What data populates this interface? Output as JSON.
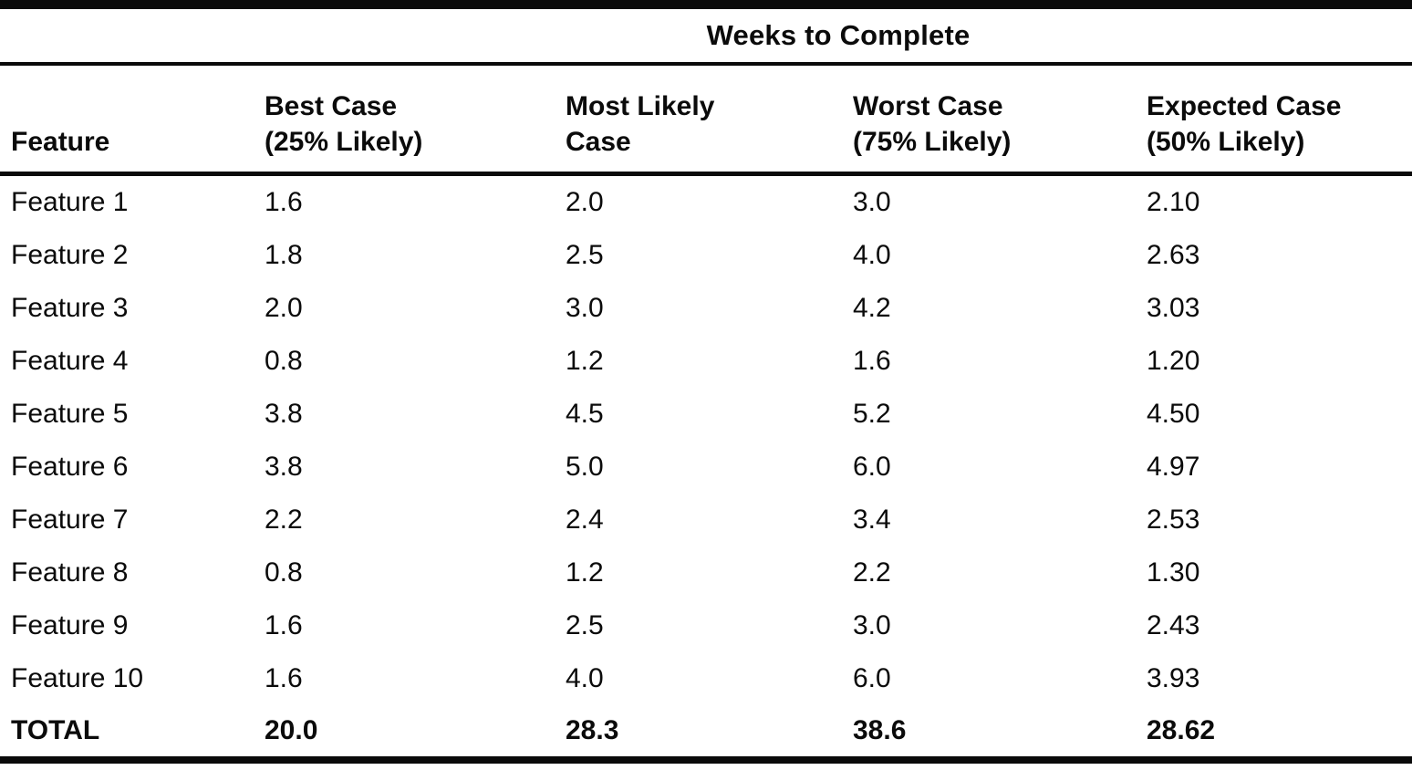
{
  "chart_data": {
    "type": "table",
    "title": "Weeks to Complete",
    "columns": [
      {
        "line1": "Feature",
        "line2": ""
      },
      {
        "line1": "Best Case",
        "line2": "(25% Likely)"
      },
      {
        "line1": "Most Likely",
        "line2": "Case"
      },
      {
        "line1": "Worst Case",
        "line2": "(75% Likely)"
      },
      {
        "line1": "Expected Case",
        "line2": "(50% Likely)"
      }
    ],
    "rows": [
      [
        "Feature 1",
        "1.6",
        "2.0",
        "3.0",
        "2.10"
      ],
      [
        "Feature 2",
        "1.8",
        "2.5",
        "4.0",
        "2.63"
      ],
      [
        "Feature 3",
        "2.0",
        "3.0",
        "4.2",
        "3.03"
      ],
      [
        "Feature 4",
        "0.8",
        "1.2",
        "1.6",
        "1.20"
      ],
      [
        "Feature 5",
        "3.8",
        "4.5",
        "5.2",
        "4.50"
      ],
      [
        "Feature 6",
        "3.8",
        "5.0",
        "6.0",
        "4.97"
      ],
      [
        "Feature 7",
        "2.2",
        "2.4",
        "3.4",
        "2.53"
      ],
      [
        "Feature 8",
        "0.8",
        "1.2",
        "2.2",
        "1.30"
      ],
      [
        "Feature 9",
        "1.6",
        "2.5",
        "3.0",
        "2.43"
      ],
      [
        "Feature 10",
        "1.6",
        "4.0",
        "6.0",
        "3.93"
      ]
    ],
    "total_row": [
      "TOTAL",
      "20.0",
      "28.3",
      "38.6",
      "28.62"
    ],
    "colors": {
      "text": "#0b0b0b",
      "rule": "#0a0a0a",
      "background": "#ffffff"
    }
  }
}
